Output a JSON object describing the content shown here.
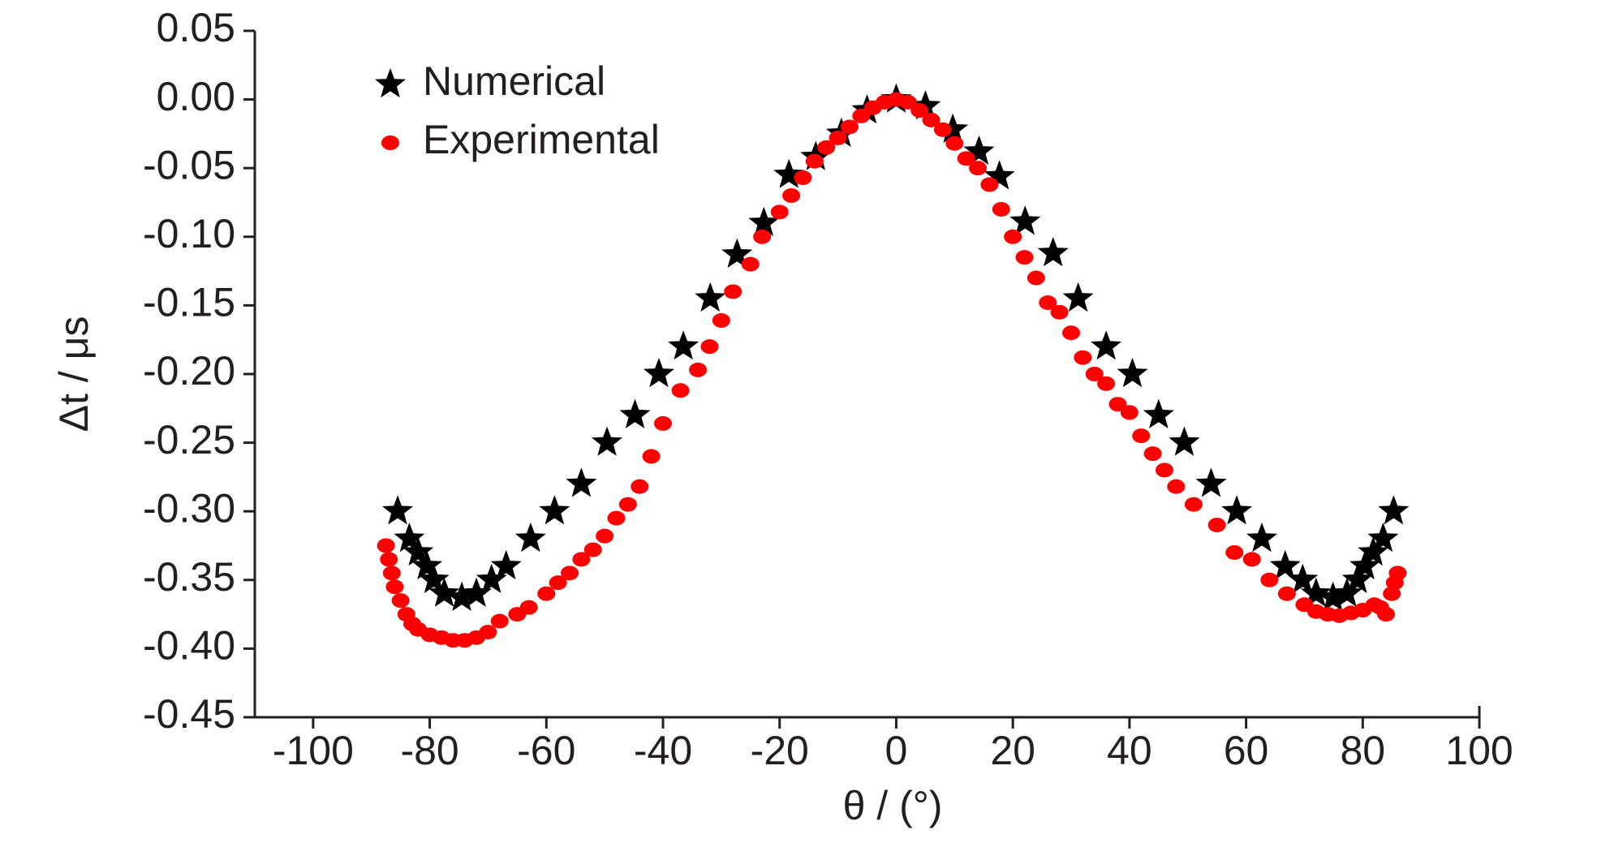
{
  "chart_data": {
    "type": "scatter",
    "xlabel": "θ / (°)",
    "ylabel": "Δt / μs",
    "xlim": [
      -110,
      100
    ],
    "ylim": [
      -0.45,
      0.05
    ],
    "xticks": [
      -100,
      -80,
      -60,
      -40,
      -20,
      0,
      20,
      40,
      60,
      80,
      100
    ],
    "yticks": [
      0.05,
      {
        "value": 0,
        "label": "0.00"
      },
      -0.05,
      {
        "value": -0.1,
        "label": "-0.10"
      },
      -0.15,
      {
        "value": -0.2,
        "label": "-0.20"
      },
      -0.25,
      {
        "value": -0.3,
        "label": "-0.30"
      },
      -0.35,
      {
        "value": -0.4,
        "label": "-0.40"
      },
      -0.45
    ],
    "legend": "upper left",
    "series": [
      {
        "name": "Numerical",
        "color": "#000000",
        "marker": "star",
        "x": [
          -85.5,
          -83.5,
          -82,
          -80.5,
          -79.3,
          -77.5,
          -74.5,
          -72,
          -69.4,
          -66.9,
          -62.7,
          -58.6,
          -54,
          -49.6,
          -44.8,
          -40.7,
          -36.5,
          -31.9,
          -27.3,
          -22.7,
          -18.4,
          -13.8,
          -9.4,
          -5,
          0,
          5,
          9.7,
          14.2,
          17.7,
          22.1,
          26.9,
          31.2,
          36,
          40.5,
          45,
          49.4,
          54,
          58.4,
          62.7,
          66.7,
          69.7,
          72,
          74.9,
          77.3,
          79.1,
          80.4,
          81.8,
          83.5,
          85.3
        ],
        "values": [
          -0.3,
          -0.32,
          -0.33,
          -0.34,
          -0.35,
          -0.36,
          -0.363,
          -0.36,
          -0.35,
          -0.34,
          -0.32,
          -0.3,
          -0.28,
          -0.25,
          -0.23,
          -0.2,
          -0.18,
          -0.145,
          -0.113,
          -0.09,
          -0.055,
          -0.042,
          -0.025,
          -0.008,
          0,
          -0.005,
          -0.022,
          -0.038,
          -0.056,
          -0.089,
          -0.112,
          -0.145,
          -0.18,
          -0.2,
          -0.23,
          -0.25,
          -0.28,
          -0.3,
          -0.32,
          -0.34,
          -0.35,
          -0.36,
          -0.363,
          -0.36,
          -0.35,
          -0.34,
          -0.33,
          -0.32,
          -0.3
        ]
      },
      {
        "name": "Experimental",
        "color": "#ff0000",
        "marker": "ellipse",
        "x": [
          -87.5,
          -87,
          -86.5,
          -86,
          -85,
          -84,
          -83,
          -82,
          -80,
          -78,
          -76,
          -74,
          -72,
          -70,
          -68,
          -65,
          -63,
          -60,
          -58,
          -56,
          -54,
          -52,
          -50,
          -48,
          -46,
          -44,
          -42,
          -40,
          -37,
          -34,
          -32,
          -30,
          -28,
          -25,
          -23,
          -20,
          -18,
          -16,
          -14,
          -12,
          -10,
          -8,
          -6,
          -4,
          -2,
          0,
          2,
          4,
          6,
          8,
          10,
          12,
          14,
          16,
          18,
          20,
          22,
          24,
          26,
          28,
          30,
          32,
          34,
          36,
          38,
          40,
          42,
          44,
          46,
          48,
          51,
          55,
          58,
          61,
          64,
          67,
          70,
          72,
          74,
          76,
          78,
          80,
          82,
          83,
          84,
          85,
          85.5,
          86
        ],
        "values": [
          -0.325,
          -0.335,
          -0.345,
          -0.355,
          -0.365,
          -0.375,
          -0.382,
          -0.386,
          -0.39,
          -0.392,
          -0.394,
          -0.394,
          -0.392,
          -0.388,
          -0.38,
          -0.375,
          -0.37,
          -0.36,
          -0.352,
          -0.345,
          -0.335,
          -0.328,
          -0.318,
          -0.305,
          -0.295,
          -0.282,
          -0.26,
          -0.236,
          -0.212,
          -0.197,
          -0.18,
          -0.161,
          -0.14,
          -0.12,
          -0.1,
          -0.082,
          -0.07,
          -0.057,
          -0.045,
          -0.035,
          -0.028,
          -0.02,
          -0.012,
          -0.006,
          -0.002,
          0,
          -0.002,
          -0.008,
          -0.015,
          -0.022,
          -0.032,
          -0.043,
          -0.05,
          -0.062,
          -0.08,
          -0.1,
          -0.115,
          -0.13,
          -0.148,
          -0.155,
          -0.17,
          -0.188,
          -0.2,
          -0.207,
          -0.222,
          -0.228,
          -0.245,
          -0.258,
          -0.27,
          -0.282,
          -0.295,
          -0.31,
          -0.33,
          -0.335,
          -0.35,
          -0.36,
          -0.368,
          -0.373,
          -0.375,
          -0.376,
          -0.374,
          -0.372,
          -0.368,
          -0.37,
          -0.375,
          -0.36,
          -0.352,
          -0.345
        ]
      }
    ]
  }
}
